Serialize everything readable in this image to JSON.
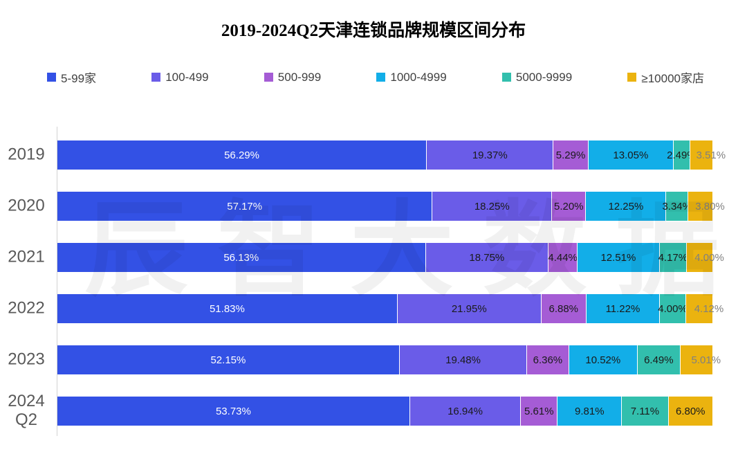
{
  "title": "2019-2024Q2天津连锁品牌规模区间分布",
  "watermark": "辰智大数据",
  "colors": {
    "axis_line": "#d2d2d2",
    "year_label": "#595959",
    "legend_text": "#404040",
    "label_dark": "#1a1a1a",
    "label_white": "#ffffff",
    "label_outside_gray": "#808080"
  },
  "chart_data": {
    "type": "bar",
    "orientation": "horizontal",
    "stacked": true,
    "unit": "%",
    "title": "2019-2024Q2天津连锁品牌规模区间分布",
    "xlim": [
      0,
      100
    ],
    "grid": false,
    "legend_position": "top",
    "categories": [
      "2019",
      "2020",
      "2021",
      "2022",
      "2023",
      "2024\nQ2"
    ],
    "series": [
      {
        "name": "5-99家",
        "color": "#3351E5",
        "values": [
          56.29,
          57.17,
          56.13,
          51.83,
          52.15,
          53.73
        ]
      },
      {
        "name": "100-499",
        "color": "#6A5CE8",
        "values": [
          19.37,
          18.25,
          18.75,
          21.95,
          19.48,
          16.94
        ]
      },
      {
        "name": "500-999",
        "color": "#A55CD5",
        "values": [
          5.29,
          5.2,
          4.44,
          6.88,
          6.36,
          5.61
        ]
      },
      {
        "name": "1000-4999",
        "color": "#12AEE8",
        "values": [
          13.05,
          12.25,
          12.51,
          11.22,
          10.52,
          9.81
        ]
      },
      {
        "name": "5000-9999",
        "color": "#32BFAD",
        "values": [
          2.49,
          3.34,
          4.17,
          4.0,
          6.49,
          7.11
        ]
      },
      {
        "name": "≥10000家店",
        "color": "#EBB30F",
        "values": [
          3.51,
          3.8,
          4.0,
          4.12,
          5.01,
          6.8
        ]
      }
    ],
    "value_labels": true,
    "last_label_outside": [
      true,
      true,
      true,
      true,
      true,
      false
    ]
  }
}
